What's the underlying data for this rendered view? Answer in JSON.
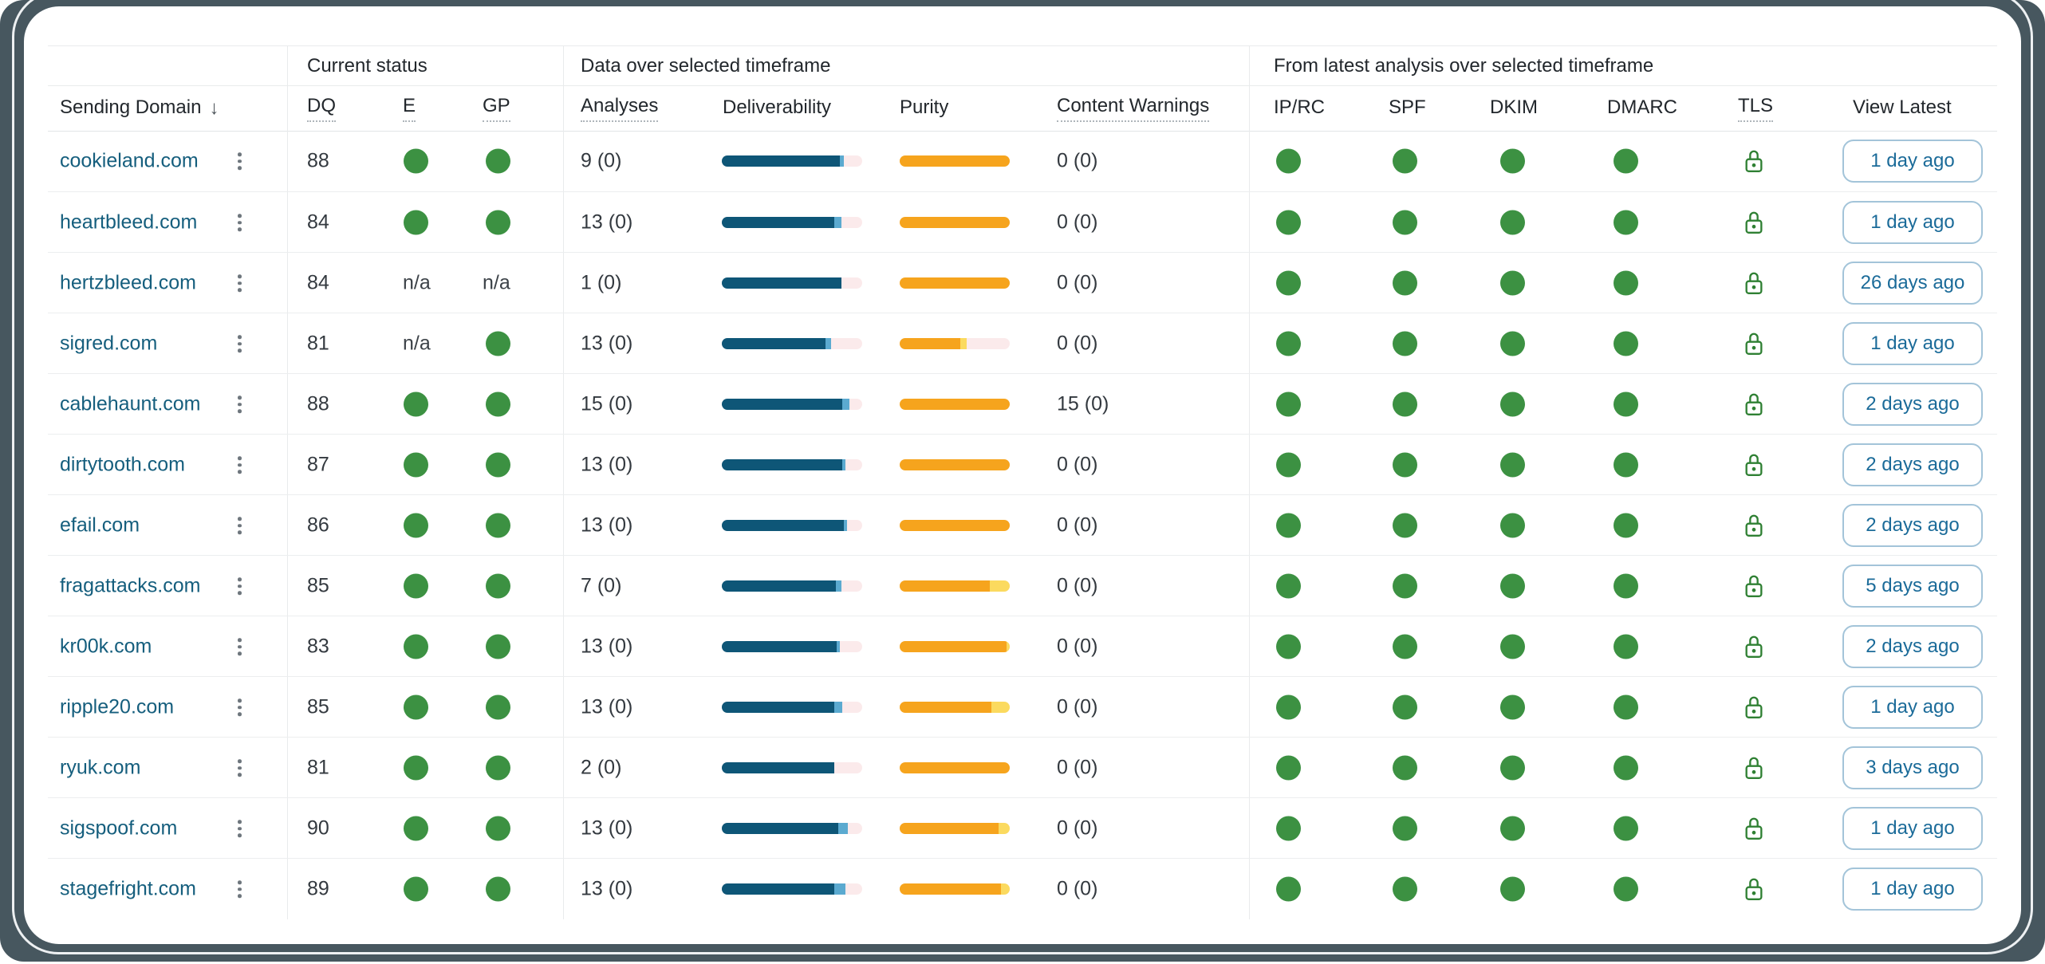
{
  "colors": {
    "window_background": "#47575F",
    "card_background": "#FFFFFF",
    "pass_green": "#3C9142",
    "bar_dark_blue": "#0E5677",
    "bar_light_blue": "#5BAAD0",
    "bar_pink": "#FBEAEB",
    "bar_orange": "#F6A41D",
    "bar_yellow": "#FBDA5F",
    "link_blue": "#155E7D",
    "button_blue": "#1B6B99"
  },
  "table": {
    "groups": [
      {
        "label": "Current status"
      },
      {
        "label": "Data over selected timeframe"
      },
      {
        "label": "From latest analysis over selected timeframe"
      }
    ],
    "columns": [
      {
        "id": "sending_domain",
        "label": "Sending Domain",
        "sort": "desc",
        "underlined": false
      },
      {
        "id": "dq",
        "label": "DQ",
        "underlined": true
      },
      {
        "id": "e",
        "label": "E",
        "underlined": true
      },
      {
        "id": "gp",
        "label": "GP",
        "underlined": true
      },
      {
        "id": "analyses",
        "label": "Analyses",
        "underlined": true
      },
      {
        "id": "deliverability",
        "label": "Deliverability",
        "underlined": false
      },
      {
        "id": "purity",
        "label": "Purity",
        "underlined": false
      },
      {
        "id": "content_warnings",
        "label": "Content Warnings",
        "underlined": true
      },
      {
        "id": "ip_rc",
        "label": "IP/RC",
        "underlined": false
      },
      {
        "id": "spf",
        "label": "SPF",
        "underlined": false
      },
      {
        "id": "dkim",
        "label": "DKIM",
        "underlined": false
      },
      {
        "id": "dmarc",
        "label": "DMARC",
        "underlined": false
      },
      {
        "id": "tls",
        "label": "TLS",
        "underlined": true
      },
      {
        "id": "view_latest",
        "label": "View Latest",
        "underlined": false
      }
    ],
    "rows": [
      {
        "domain": "cookieland.com",
        "dq": "88",
        "e": "pass",
        "gp": "pass",
        "analyses": "9 (0)",
        "deliverability": [
          84,
          3,
          13
        ],
        "purity": [
          100,
          0,
          0
        ],
        "content_warnings": "0 (0)",
        "ip_rc": "pass",
        "spf": "pass",
        "dkim": "pass",
        "dmarc": "pass",
        "tls": "pass",
        "view_latest": "1 day ago"
      },
      {
        "domain": "heartbleed.com",
        "dq": "84",
        "e": "pass",
        "gp": "pass",
        "analyses": "13 (0)",
        "deliverability": [
          80,
          5,
          15
        ],
        "purity": [
          100,
          0,
          0
        ],
        "content_warnings": "0 (0)",
        "ip_rc": "pass",
        "spf": "pass",
        "dkim": "pass",
        "dmarc": "pass",
        "tls": "pass",
        "view_latest": "1 day ago"
      },
      {
        "domain": "hertzbleed.com",
        "dq": "84",
        "e": "na",
        "gp": "na",
        "analyses": "1 (0)",
        "deliverability": [
          85,
          0,
          15
        ],
        "purity": [
          100,
          0,
          0
        ],
        "content_warnings": "0 (0)",
        "ip_rc": "pass",
        "spf": "pass",
        "dkim": "pass",
        "dmarc": "pass",
        "tls": "pass",
        "view_latest": "26 days ago"
      },
      {
        "domain": "sigred.com",
        "dq": "81",
        "e": "na",
        "gp": "pass",
        "analyses": "13 (0)",
        "deliverability": [
          74,
          4,
          22
        ],
        "purity": [
          55,
          6,
          39
        ],
        "content_warnings": "0 (0)",
        "ip_rc": "pass",
        "spf": "pass",
        "dkim": "pass",
        "dmarc": "pass",
        "tls": "pass",
        "view_latest": "1 day ago"
      },
      {
        "domain": "cablehaunt.com",
        "dq": "88",
        "e": "pass",
        "gp": "pass",
        "analyses": "15 (0)",
        "deliverability": [
          86,
          5,
          9
        ],
        "purity": [
          100,
          0,
          0
        ],
        "content_warnings": "15 (0)",
        "ip_rc": "pass",
        "spf": "pass",
        "dkim": "pass",
        "dmarc": "pass",
        "tls": "pass",
        "view_latest": "2 days ago"
      },
      {
        "domain": "dirtytooth.com",
        "dq": "87",
        "e": "pass",
        "gp": "pass",
        "analyses": "13 (0)",
        "deliverability": [
          86,
          2,
          12
        ],
        "purity": [
          100,
          0,
          0
        ],
        "content_warnings": "0 (0)",
        "ip_rc": "pass",
        "spf": "pass",
        "dkim": "pass",
        "dmarc": "pass",
        "tls": "pass",
        "view_latest": "2 days ago"
      },
      {
        "domain": "efail.com",
        "dq": "86",
        "e": "pass",
        "gp": "pass",
        "analyses": "13 (0)",
        "deliverability": [
          87,
          2,
          11
        ],
        "purity": [
          100,
          0,
          0
        ],
        "content_warnings": "0 (0)",
        "ip_rc": "pass",
        "spf": "pass",
        "dkim": "pass",
        "dmarc": "pass",
        "tls": "pass",
        "view_latest": "2 days ago"
      },
      {
        "domain": "fragattacks.com",
        "dq": "85",
        "e": "pass",
        "gp": "pass",
        "analyses": "7 (0)",
        "deliverability": [
          81,
          4,
          15
        ],
        "purity": [
          82,
          18,
          0
        ],
        "content_warnings": "0 (0)",
        "ip_rc": "pass",
        "spf": "pass",
        "dkim": "pass",
        "dmarc": "pass",
        "tls": "pass",
        "view_latest": "5 days ago"
      },
      {
        "domain": "kr00k.com",
        "dq": "83",
        "e": "pass",
        "gp": "pass",
        "analyses": "13 (0)",
        "deliverability": [
          82,
          2,
          16
        ],
        "purity": [
          97,
          3,
          0
        ],
        "content_warnings": "0 (0)",
        "ip_rc": "pass",
        "spf": "pass",
        "dkim": "pass",
        "dmarc": "pass",
        "tls": "pass",
        "view_latest": "2 days ago"
      },
      {
        "domain": "ripple20.com",
        "dq": "85",
        "e": "pass",
        "gp": "pass",
        "analyses": "13 (0)",
        "deliverability": [
          80,
          6,
          14
        ],
        "purity": [
          83,
          17,
          0
        ],
        "content_warnings": "0 (0)",
        "ip_rc": "pass",
        "spf": "pass",
        "dkim": "pass",
        "dmarc": "pass",
        "tls": "pass",
        "view_latest": "1 day ago"
      },
      {
        "domain": "ryuk.com",
        "dq": "81",
        "e": "pass",
        "gp": "pass",
        "analyses": "2 (0)",
        "deliverability": [
          80,
          0,
          20
        ],
        "purity": [
          100,
          0,
          0
        ],
        "content_warnings": "0 (0)",
        "ip_rc": "pass",
        "spf": "pass",
        "dkim": "pass",
        "dmarc": "pass",
        "tls": "pass",
        "view_latest": "3 days ago"
      },
      {
        "domain": "sigspoof.com",
        "dq": "90",
        "e": "pass",
        "gp": "pass",
        "analyses": "13 (0)",
        "deliverability": [
          83,
          7,
          10
        ],
        "purity": [
          90,
          10,
          0
        ],
        "content_warnings": "0 (0)",
        "ip_rc": "pass",
        "spf": "pass",
        "dkim": "pass",
        "dmarc": "pass",
        "tls": "pass",
        "view_latest": "1 day ago"
      },
      {
        "domain": "stagefright.com",
        "dq": "89",
        "e": "pass",
        "gp": "pass",
        "analyses": "13 (0)",
        "deliverability": [
          80,
          8,
          12
        ],
        "purity": [
          92,
          8,
          0
        ],
        "content_warnings": "0 (0)",
        "ip_rc": "pass",
        "spf": "pass",
        "dkim": "pass",
        "dmarc": "pass",
        "tls": "pass",
        "view_latest": "1 day ago"
      }
    ]
  }
}
